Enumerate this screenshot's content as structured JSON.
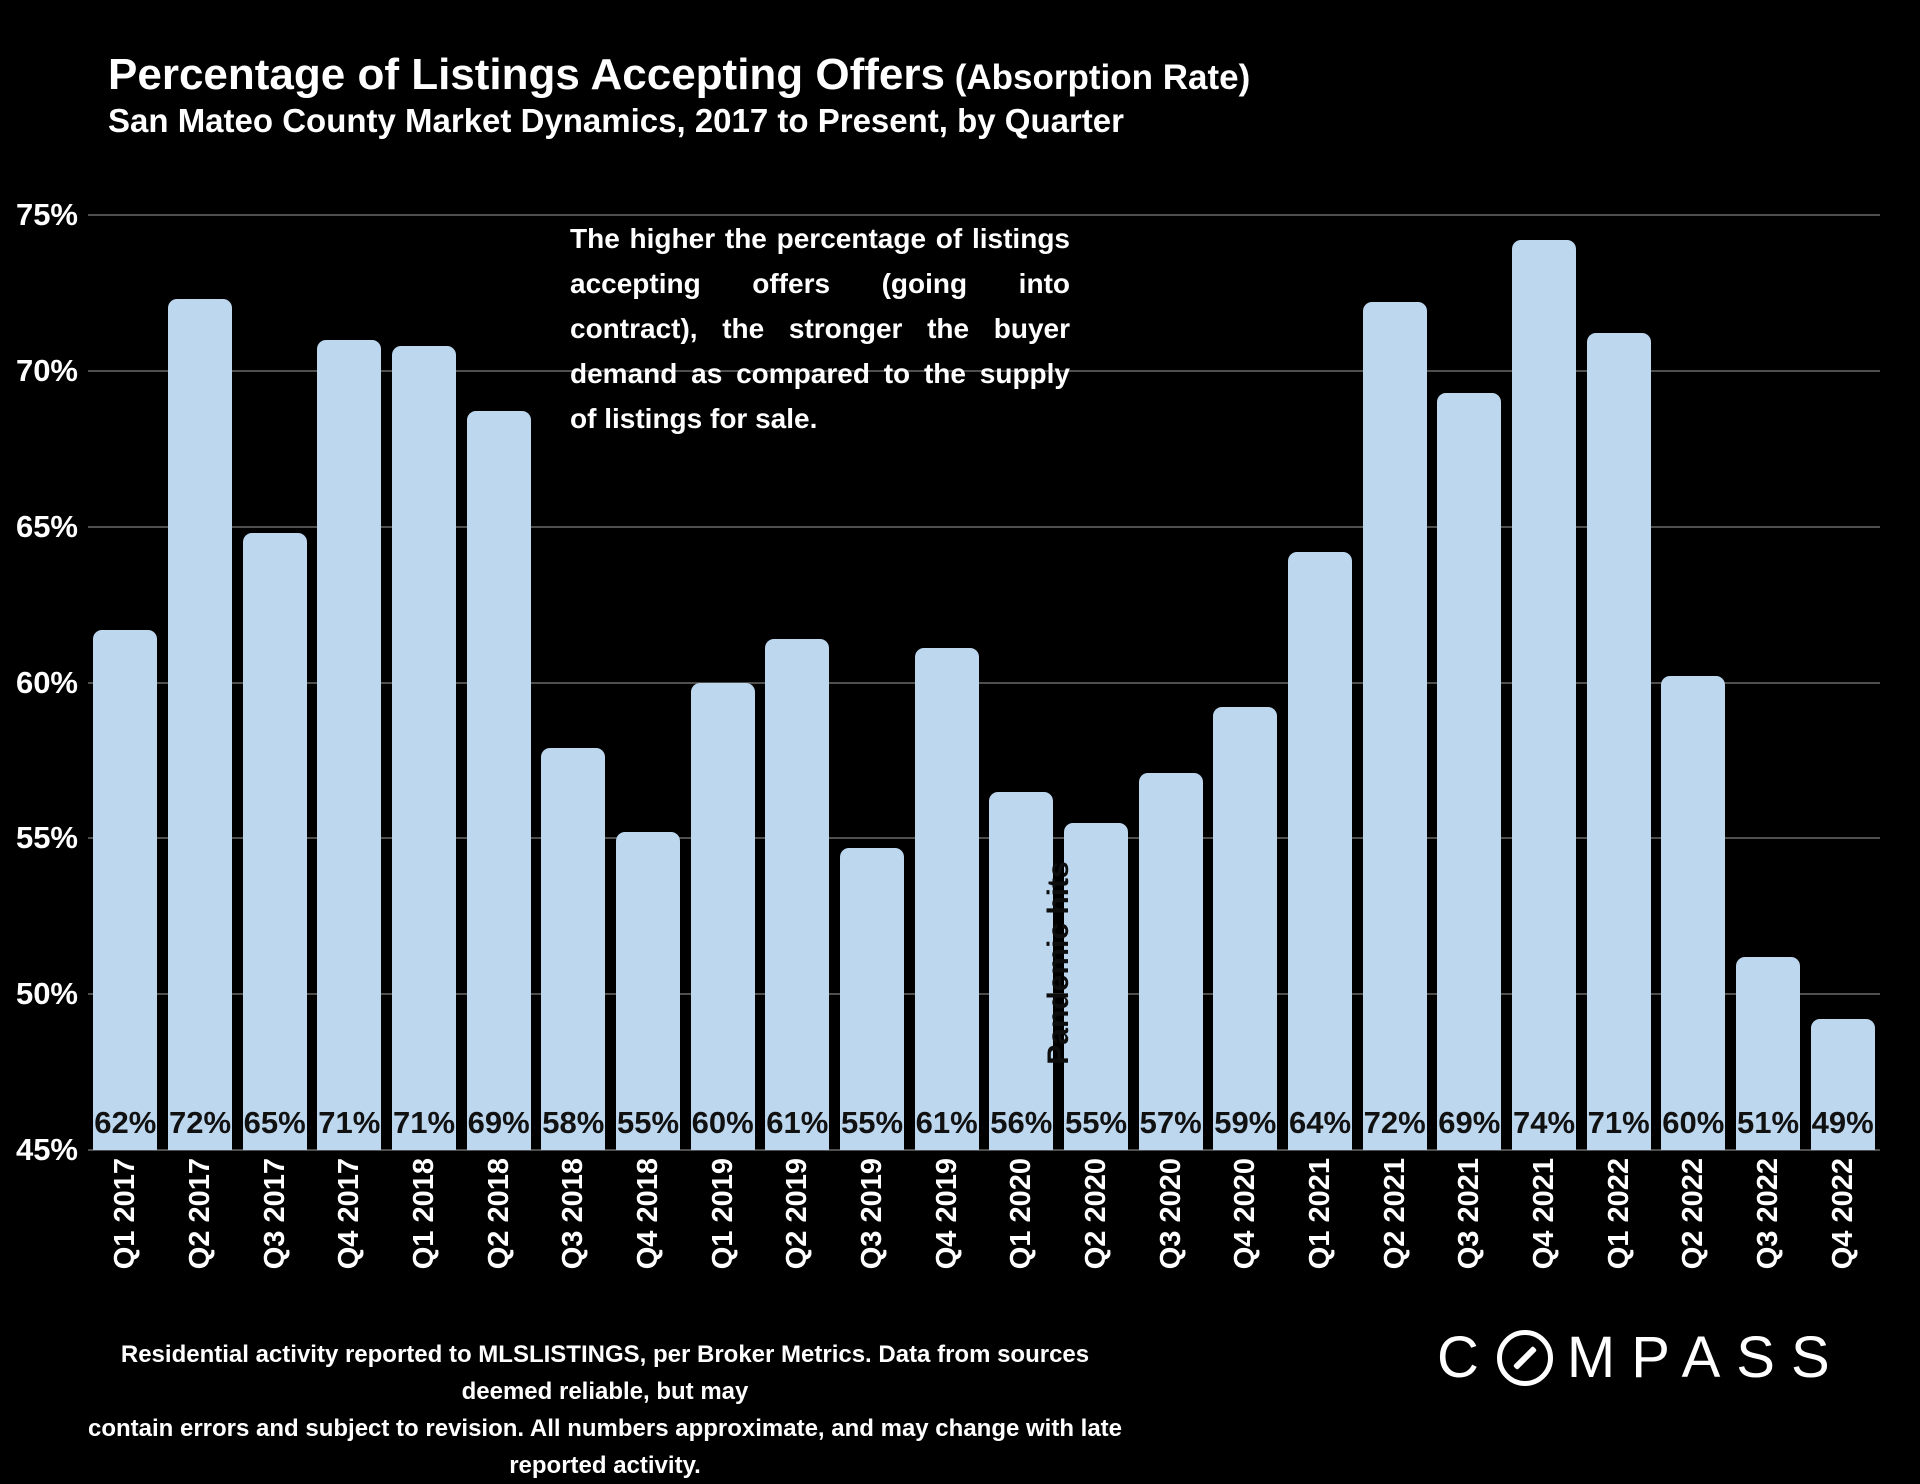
{
  "header": {
    "title": "Percentage of Listings Accepting Offers",
    "title_suffix": " (Absorption Rate)",
    "subtitle": "San Mateo County Market Dynamics, 2017 to Present, by Quarter"
  },
  "annotation": {
    "text": "The higher the percentage of listings accepting offers (going into contract), the stronger the buyer demand as compared to the supply of listings for sale."
  },
  "footer": {
    "line1": "Residential activity reported to MLSLISTINGS, per Broker Metrics. Data from sources deemed reliable, but may",
    "line2": "contain errors and subject to revision. All numbers approximate, and may change with late reported activity."
  },
  "logo": {
    "name": "COMPASS",
    "prefix": "C",
    "suffix": "MPASS",
    "o_icon": "compass-slashed-o"
  },
  "colors": {
    "background": "#000000",
    "bar": "#BDD7EE",
    "grid": "#4f4f4f",
    "text": "#FFFFFF",
    "bar_label": "#111111"
  },
  "chart_data": {
    "type": "bar",
    "title": "Percentage of Listings Accepting Offers (Absorption Rate)",
    "subtitle": "San Mateo County Market Dynamics, 2017 to Present, by Quarter",
    "categories": [
      "Q1 2017",
      "Q2 2017",
      "Q3 2017",
      "Q4 2017",
      "Q1 2018",
      "Q2 2018",
      "Q3 2018",
      "Q4 2018",
      "Q1 2019",
      "Q2 2019",
      "Q3 2019",
      "Q4 2019",
      "Q1 2020",
      "Q2 2020",
      "Q3 2020",
      "Q4 2020",
      "Q1 2021",
      "Q2 2021",
      "Q3 2021",
      "Q4 2021",
      "Q1 2022",
      "Q2 2022",
      "Q3 2022",
      "Q4 2022"
    ],
    "values": [
      61.7,
      72.3,
      64.8,
      71.0,
      70.8,
      68.7,
      57.9,
      55.2,
      60.0,
      61.4,
      54.7,
      61.1,
      56.5,
      55.5,
      57.1,
      59.2,
      64.2,
      72.2,
      69.3,
      74.2,
      71.2,
      60.2,
      51.2,
      49.2
    ],
    "bar_labels": [
      "62%",
      "72%",
      "65%",
      "71%",
      "71%",
      "69%",
      "58%",
      "55%",
      "60%",
      "61%",
      "55%",
      "61%",
      "56%",
      "55%",
      "57%",
      "59%",
      "64%",
      "72%",
      "69%",
      "74%",
      "71%",
      "60%",
      "51%",
      "49%"
    ],
    "ylim": [
      45,
      75
    ],
    "yticks": [
      {
        "label": "75%",
        "value": 75
      },
      {
        "label": "70%",
        "value": 70
      },
      {
        "label": "65%",
        "value": 65
      },
      {
        "label": "60%",
        "value": 60
      },
      {
        "label": "55%",
        "value": 55
      },
      {
        "label": "50%",
        "value": 50
      },
      {
        "label": "45%",
        "value": 45
      }
    ],
    "grid": true,
    "legend": false,
    "xlabel": "",
    "ylabel": "",
    "annotation": {
      "text": "Pandemic hits",
      "between_categories": [
        "Q1 2020",
        "Q2 2020"
      ]
    }
  }
}
